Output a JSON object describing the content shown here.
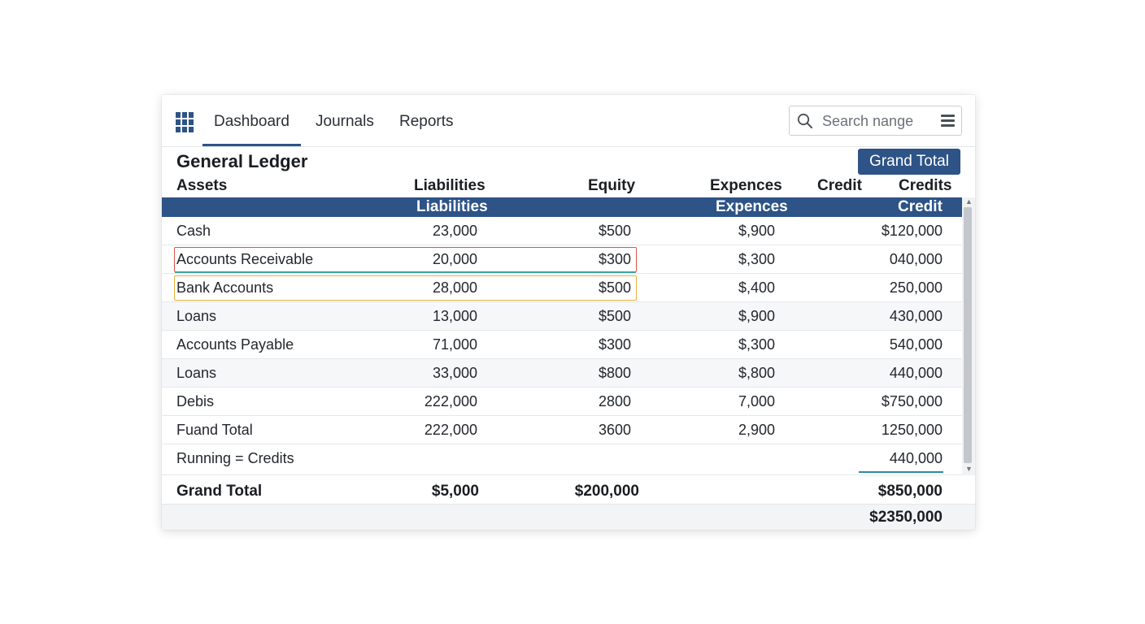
{
  "nav": {
    "tabs": [
      {
        "label": "Dashboard",
        "active": true
      },
      {
        "label": "Journals",
        "active": false
      },
      {
        "label": "Reports",
        "active": false
      }
    ],
    "search_placeholder": "Search nange",
    "icons": {
      "app": "grid-icon",
      "search": "search-icon",
      "menu": "hamburger-menu-icon"
    }
  },
  "ledger": {
    "title": "General Ledger",
    "grand_total_button": "Grand Total",
    "column_headers": {
      "assets": "Assets",
      "liabilities": "Liabilities",
      "equity": "Equity",
      "expences": "Expences",
      "credit": "Credit",
      "credits": "Credits"
    },
    "subheader": {
      "liabilities": "Liabilities",
      "expences": "Expences",
      "credit": "Credit"
    },
    "rows": [
      {
        "name": "Cash",
        "liabilities": "23,000",
        "equity": "$500",
        "expences": "$,900",
        "credit": "$120,000"
      },
      {
        "name": "Accounts Receivable",
        "liabilities": "20,000",
        "equity": "$300",
        "expences": "$,300",
        "credit": "040,000"
      },
      {
        "name": "Bank Accounts",
        "liabilities": "28,000",
        "equity": "$500",
        "expences": "$,400",
        "credit": "250,000"
      },
      {
        "name": "Loans",
        "liabilities": "13,000",
        "equity": "$500",
        "expences": "$,900",
        "credit": "430,000"
      },
      {
        "name": "Accounts Payable",
        "liabilities": "71,000",
        "equity": "$300",
        "expences": "$,300",
        "credit": "540,000"
      },
      {
        "name": "Loans",
        "liabilities": "33,000",
        "equity": "$800",
        "expences": "$,800",
        "credit": "440,000"
      },
      {
        "name": "Debis",
        "liabilities": "222,000",
        "equity": "2800",
        "expences": "7,000",
        "credit": "$750,000"
      },
      {
        "name": "Fuand Total",
        "liabilities": "222,000",
        "equity": "3600",
        "expences": "2,900",
        "credit": "1250,000"
      },
      {
        "name": "Running = Credits",
        "liabilities": "",
        "equity": "",
        "expences": "",
        "credit": "440,000"
      }
    ],
    "grand_total": {
      "label": "Grand Total",
      "liabilities": "$5,000",
      "equity": "$200,000",
      "credit": "$850,000"
    },
    "final_total": "$2350,000",
    "colors": {
      "accent": "#2d5387",
      "highlight_red": "#d9534a",
      "highlight_yellow": "#e9b13c"
    }
  }
}
